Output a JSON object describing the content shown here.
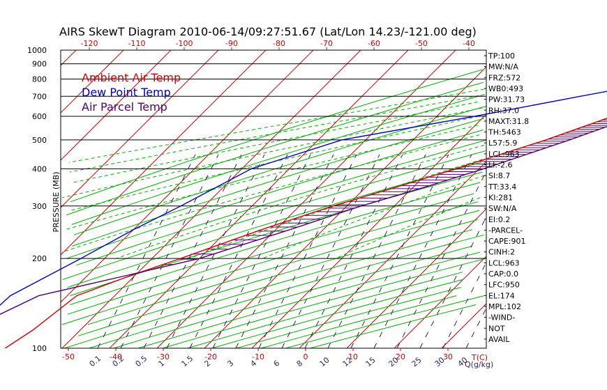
{
  "chart_data": {
    "type": "line",
    "title": "AIRS SkewT Diagram 2010-06-14/09:27:51.67 (Lat/Lon 14.23/-121.00 deg)",
    "ylabel": "PRESSURE (MB)",
    "xlabel_right": "T(C)",
    "mix_label": "Q(g/kg)",
    "y_ticks": [
      100,
      200,
      300,
      400,
      500,
      600,
      700,
      800,
      900,
      1000
    ],
    "top_temp_ticks": [
      -120,
      -110,
      -100,
      -90,
      -80,
      -70,
      -60,
      -50,
      -40
    ],
    "bottom_temp_ticks": [
      -50,
      -40,
      -30,
      -20,
      -10,
      0,
      10,
      20,
      30
    ],
    "mixing_ratio_ticks": [
      "0.1",
      "0.2",
      "0.5",
      "1",
      "1.5",
      "2",
      "3",
      "4",
      "6",
      "8",
      "10",
      "12",
      "15",
      "20",
      "25",
      "30",
      "40"
    ],
    "legend": [
      {
        "name": "Ambient Air Temp",
        "color": "#d40000"
      },
      {
        "name": "Dew Point Temp",
        "color": "#0000c8"
      },
      {
        "name": "Air Parcel Temp",
        "color": "#500070"
      }
    ],
    "colors": {
      "isotherm": "#d40000",
      "dry_adiabat": "#00b000",
      "moist_adiabat": "#00b000",
      "mixing_ratio": "#302060",
      "isobar": "#000000"
    },
    "series": [
      {
        "name": "Ambient Air Temp",
        "color": "#d40000",
        "points": [
          [
            100,
            -82
          ],
          [
            115,
            -80
          ],
          [
            150,
            -78
          ],
          [
            175,
            -71
          ],
          [
            200,
            -64
          ],
          [
            250,
            -53
          ],
          [
            300,
            -43
          ],
          [
            350,
            -33
          ],
          [
            400,
            -25
          ],
          [
            500,
            -12
          ],
          [
            600,
            -3
          ],
          [
            700,
            5
          ],
          [
            800,
            13
          ],
          [
            900,
            20
          ],
          [
            950,
            23
          ],
          [
            1000,
            26
          ]
        ]
      },
      {
        "name": "Dew Point Temp",
        "color": "#0000c8",
        "points": [
          [
            100,
            -93
          ],
          [
            150,
            -92
          ],
          [
            200,
            -85
          ],
          [
            250,
            -80
          ],
          [
            300,
            -75
          ],
          [
            400,
            -68
          ],
          [
            500,
            -55
          ],
          [
            600,
            -32
          ],
          [
            700,
            -14
          ],
          [
            800,
            2
          ],
          [
            900,
            14
          ],
          [
            950,
            20
          ],
          [
            1000,
            24
          ]
        ]
      },
      {
        "name": "Air Parcel Temp",
        "color": "#500070",
        "points": [
          [
            100,
            -98
          ],
          [
            150,
            -86
          ],
          [
            175,
            -72
          ],
          [
            200,
            -60
          ],
          [
            250,
            -47
          ],
          [
            300,
            -37
          ],
          [
            350,
            -27
          ],
          [
            400,
            -19
          ],
          [
            500,
            -7
          ],
          [
            600,
            2
          ],
          [
            700,
            8
          ],
          [
            800,
            14
          ],
          [
            900,
            20
          ],
          [
            950,
            22
          ],
          [
            1000,
            26
          ]
        ]
      }
    ]
  },
  "indices": [
    {
      "text": "TP:100"
    },
    {
      "text": "MW:N/A"
    },
    {
      "text": "FRZ:572"
    },
    {
      "text": "WB0:493"
    },
    {
      "text": "PW:31.73"
    },
    {
      "text": "RH:37.0"
    },
    {
      "text": "MAXT:31.8"
    },
    {
      "text": "TH:5463"
    },
    {
      "text": "L57:5.9"
    },
    {
      "text": "LCL:963"
    },
    {
      "text": "LI:-2.6"
    },
    {
      "text": "SI:8.7"
    },
    {
      "text": "TT:33.4"
    },
    {
      "text": "KI:281"
    },
    {
      "text": "SW:N/A"
    },
    {
      "text": "EI:0.2"
    },
    {
      "text": "-PARCEL-"
    },
    {
      "text": "CAPE:901"
    },
    {
      "text": "CINH:2"
    },
    {
      "text": "LCL:963"
    },
    {
      "text": "CAP:0.0"
    },
    {
      "text": "LFC:950"
    },
    {
      "text": "EL:174"
    },
    {
      "text": "MPL:102"
    },
    {
      "text": "-WIND-"
    },
    {
      "text": "NOT"
    },
    {
      "text": "AVAIL"
    }
  ]
}
